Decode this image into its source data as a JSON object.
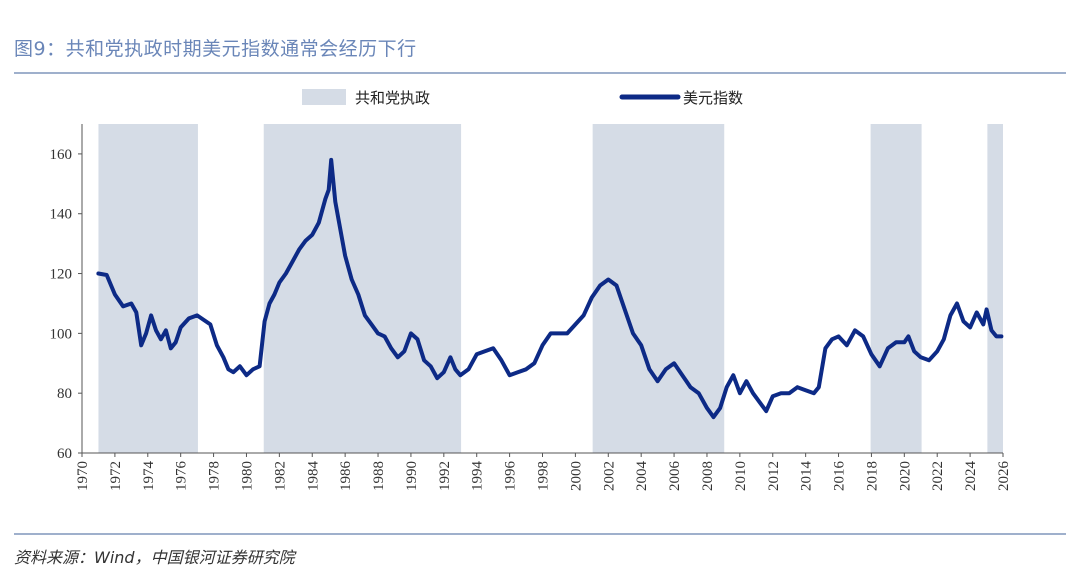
{
  "title": "图9：共和党执政时期美元指数通常会经历下行",
  "source": "资料来源：Wind，中国银河证券研究院",
  "chart_data": {
    "type": "line",
    "legend": {
      "shade": "共和党执政",
      "line": "美元指数"
    },
    "colors": {
      "line": "#0d2a86",
      "shade": "#d5dce6",
      "axis": "#555555"
    },
    "xlim": [
      1970,
      2026
    ],
    "ylim": [
      60,
      170
    ],
    "xticks": [
      1970,
      1972,
      1974,
      1976,
      1978,
      1980,
      1982,
      1984,
      1986,
      1988,
      1990,
      1992,
      1994,
      1996,
      1998,
      2000,
      2002,
      2004,
      2006,
      2008,
      2010,
      2012,
      2014,
      2016,
      2018,
      2020,
      2022,
      2024,
      2026
    ],
    "yticks": [
      60,
      80,
      100,
      120,
      140,
      160
    ],
    "republican_periods": [
      [
        1971.0,
        1977.05
      ],
      [
        1981.05,
        1993.05
      ],
      [
        2001.05,
        2009.05
      ],
      [
        2017.95,
        2021.05
      ],
      [
        2025.05,
        2026.0
      ]
    ],
    "series": [
      {
        "name": "美元指数",
        "x": [
          1971.0,
          1971.5,
          1972.0,
          1972.5,
          1973.0,
          1973.3,
          1973.6,
          1973.9,
          1974.2,
          1974.5,
          1974.8,
          1975.1,
          1975.4,
          1975.7,
          1976.0,
          1976.5,
          1977.0,
          1977.4,
          1977.8,
          1978.2,
          1978.6,
          1978.9,
          1979.2,
          1979.6,
          1980.0,
          1980.4,
          1980.8,
          1981.1,
          1981.4,
          1981.7,
          1982.0,
          1982.4,
          1982.8,
          1983.2,
          1983.6,
          1984.0,
          1984.4,
          1984.8,
          1985.0,
          1985.15,
          1985.4,
          1985.7,
          1986.0,
          1986.4,
          1986.8,
          1987.2,
          1987.6,
          1988.0,
          1988.4,
          1988.8,
          1989.2,
          1989.6,
          1990.0,
          1990.4,
          1990.8,
          1991.2,
          1991.6,
          1992.0,
          1992.4,
          1992.7,
          1993.0,
          1993.5,
          1994.0,
          1994.5,
          1995.0,
          1995.5,
          1996.0,
          1996.5,
          1997.0,
          1997.5,
          1998.0,
          1998.5,
          1999.0,
          1999.5,
          2000.0,
          2000.5,
          2001.0,
          2001.5,
          2002.0,
          2002.5,
          2003.0,
          2003.5,
          2004.0,
          2004.5,
          2005.0,
          2005.5,
          2006.0,
          2006.5,
          2007.0,
          2007.5,
          2008.0,
          2008.4,
          2008.8,
          2009.2,
          2009.6,
          2010.0,
          2010.4,
          2010.8,
          2011.2,
          2011.6,
          2012.0,
          2012.5,
          2013.0,
          2013.5,
          2014.0,
          2014.5,
          2014.8,
          2015.2,
          2015.6,
          2016.0,
          2016.5,
          2017.0,
          2017.5,
          2018.0,
          2018.5,
          2019.0,
          2019.5,
          2020.0,
          2020.25,
          2020.6,
          2021.0,
          2021.5,
          2022.0,
          2022.4,
          2022.8,
          2023.2,
          2023.6,
          2024.0,
          2024.4,
          2024.8,
          2025.0,
          2025.3,
          2025.6,
          2025.9
        ],
        "values": [
          120,
          119.5,
          113,
          109,
          110,
          107,
          96,
          100,
          106,
          101,
          98,
          101,
          95,
          97,
          102,
          105,
          106,
          104.5,
          103,
          96,
          92,
          88,
          87,
          89,
          86,
          88,
          89,
          104,
          110,
          113,
          117,
          120,
          124,
          128,
          131,
          133,
          137,
          145,
          148,
          158,
          144,
          135,
          126,
          118,
          113,
          106,
          103,
          100,
          99,
          95,
          92,
          94,
          100,
          98,
          91,
          89,
          85,
          87,
          92,
          88,
          86,
          88,
          93,
          94,
          95,
          91,
          86,
          87,
          88,
          90,
          96,
          100,
          100,
          100,
          103,
          106,
          112,
          116,
          118,
          116,
          108,
          100,
          96,
          88,
          84,
          88,
          90,
          86,
          82,
          80,
          75,
          72,
          75,
          82,
          86,
          80,
          84,
          80,
          77,
          74,
          79,
          80,
          80,
          82,
          81,
          80,
          82,
          95,
          98,
          99,
          96,
          101,
          99,
          93,
          89,
          95,
          97,
          97,
          99,
          94,
          92,
          91,
          94,
          98,
          106,
          110,
          104,
          102,
          107,
          103,
          108,
          101,
          99,
          99
        ]
      }
    ]
  }
}
